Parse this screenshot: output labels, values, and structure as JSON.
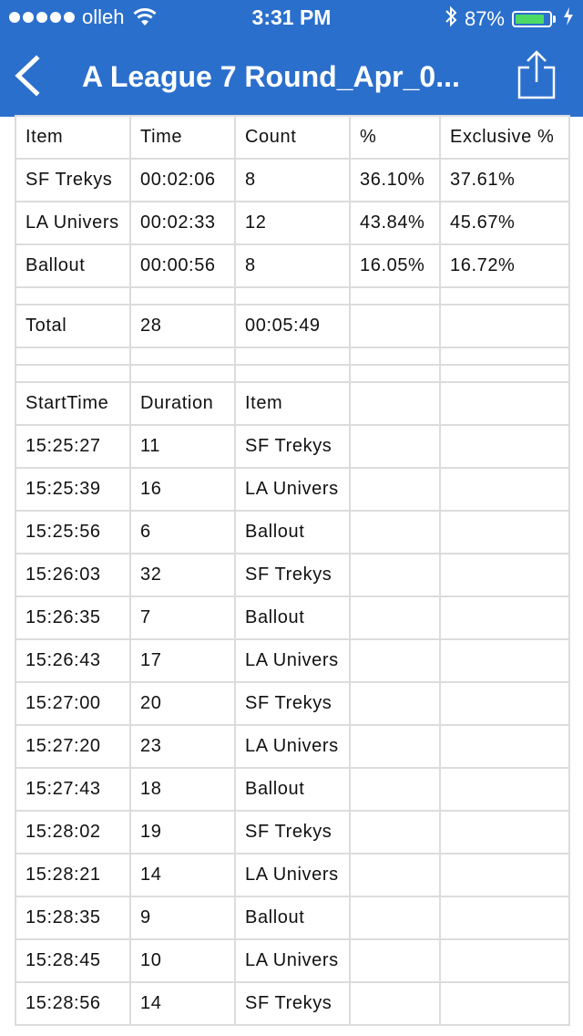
{
  "status_bar": {
    "carrier": "olleh",
    "time": "3:31 PM",
    "battery": "87%",
    "battery_level": 0.87,
    "battery_color": "#4cd964"
  },
  "nav": {
    "title": "A League 7 Round_Apr_0...",
    "back_icon": "chevron-left-icon",
    "share_icon": "share-icon",
    "bar_color": "#2b6fcc"
  },
  "table": {
    "summary_header": [
      "Item",
      "Time",
      "Count",
      "%",
      "Exclusive %"
    ],
    "summary_rows": [
      [
        "SF Trekys",
        "00:02:06",
        "8",
        "36.10%",
        "37.61%"
      ],
      [
        "LA Univers",
        "00:02:33",
        "12",
        "43.84%",
        "45.67%"
      ],
      [
        "Ballout",
        "00:00:56",
        "8",
        "16.05%",
        "16.72%"
      ]
    ],
    "total_row": [
      "Total",
      "28",
      "00:05:49",
      "",
      ""
    ],
    "log_header": [
      "StartTime",
      "Duration",
      "Item",
      "",
      ""
    ],
    "log_rows": [
      [
        "15:25:27",
        "11",
        "SF Trekys",
        "",
        ""
      ],
      [
        "15:25:39",
        "16",
        "LA Univers",
        "",
        ""
      ],
      [
        "15:25:56",
        "6",
        "Ballout",
        "",
        ""
      ],
      [
        "15:26:03",
        "32",
        "SF Trekys",
        "",
        ""
      ],
      [
        "15:26:35",
        "7",
        "Ballout",
        "",
        ""
      ],
      [
        "15:26:43",
        "17",
        "LA Univers",
        "",
        ""
      ],
      [
        "15:27:00",
        "20",
        "SF Trekys",
        "",
        ""
      ],
      [
        "15:27:20",
        "23",
        "LA Univers",
        "",
        ""
      ],
      [
        "15:27:43",
        "18",
        "Ballout",
        "",
        ""
      ],
      [
        "15:28:02",
        "19",
        "SF Trekys",
        "",
        ""
      ],
      [
        "15:28:21",
        "14",
        "LA Univers",
        "",
        ""
      ],
      [
        "15:28:35",
        "9",
        "Ballout",
        "",
        ""
      ],
      [
        "15:28:45",
        "10",
        "LA Univers",
        "",
        ""
      ],
      [
        "15:28:56",
        "14",
        "SF Trekys",
        "",
        ""
      ]
    ]
  }
}
